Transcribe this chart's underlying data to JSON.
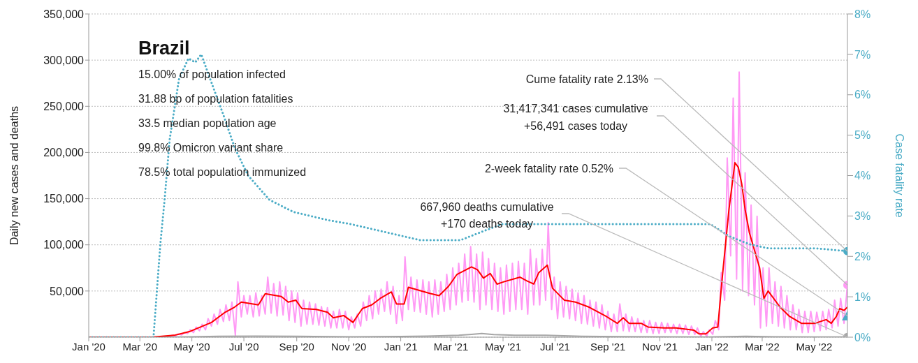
{
  "chart_data": {
    "type": "line",
    "title": "Brazil",
    "ylabel": "Daily new cases and deaths",
    "y2label": "Case fatality rate",
    "annotations": [
      "15.00% of population infected",
      "31.88 bp of population fatalities",
      "33.5 median population age",
      "99.8% Omicron variant share",
      "78.5% total population immunized",
      {
        "text": "Cume fatality rate 2.13%",
        "x": "2022-06-09",
        "y": 93000
      },
      {
        "text": "31,417,341 cases cumulative",
        "x": "2022-06-09",
        "y": 56491
      },
      "+56,491 cases today",
      {
        "text": "2-week fatality rate 0.52%",
        "x": "2022-06-09",
        "y": 23000
      },
      "667,960 deaths cumulative",
      "+170 deaths today"
    ],
    "xlim": [
      "2020-01-01",
      "2022-06-09"
    ],
    "xticks": [
      {
        "value": "2020-01-01",
        "label": "Jan '20"
      },
      {
        "value": "2020-03-01",
        "label": "Mar '20"
      },
      {
        "value": "2020-05-01",
        "label": "May '20"
      },
      {
        "value": "2020-07-01",
        "label": "Jul '20"
      },
      {
        "value": "2020-09-01",
        "label": "Sep '20"
      },
      {
        "value": "2020-11-01",
        "label": "Nov '20"
      },
      {
        "value": "2021-01-01",
        "label": "Jan '21"
      },
      {
        "value": "2021-03-01",
        "label": "Mar '21"
      },
      {
        "value": "2021-05-01",
        "label": "May '21"
      },
      {
        "value": "2021-07-01",
        "label": "Jul '21"
      },
      {
        "value": "2021-09-01",
        "label": "Sep '21"
      },
      {
        "value": "2021-11-01",
        "label": "Nov '21"
      },
      {
        "value": "2022-01-01",
        "label": "Jan '22"
      },
      {
        "value": "2022-03-01",
        "label": "Mar '22"
      },
      {
        "value": "2022-05-01",
        "label": "May '22"
      }
    ],
    "ylim": [
      0,
      350000
    ],
    "yticks": [
      {
        "value": 50000,
        "label": "50,000"
      },
      {
        "value": 100000,
        "label": "100,000"
      },
      {
        "value": 150000,
        "label": "150,000"
      },
      {
        "value": 200000,
        "label": "200,000"
      },
      {
        "value": 250000,
        "label": "250,000"
      },
      {
        "value": 300000,
        "label": "300,000"
      },
      {
        "value": 350000,
        "label": "350,000"
      }
    ],
    "y2lim": [
      0,
      8
    ],
    "y2ticks": [
      {
        "value": 0,
        "label": "0%"
      },
      {
        "value": 1,
        "label": "1%"
      },
      {
        "value": 2,
        "label": "2%"
      },
      {
        "value": 3,
        "label": "3%"
      },
      {
        "value": 4,
        "label": "4%"
      },
      {
        "value": 5,
        "label": "5%"
      },
      {
        "value": 6,
        "label": "6%"
      },
      {
        "value": 7,
        "label": "7%"
      },
      {
        "value": 8,
        "label": "8%"
      }
    ],
    "grid": "y",
    "series": [
      {
        "color": "#ff99f5",
        "line_style": "solid",
        "x": [
          "2020-04-05",
          "2020-04-08",
          "2020-04-12",
          "2020-04-15",
          "2020-04-19",
          "2020-04-22",
          "2020-04-26",
          "2020-04-29",
          "2020-05-03",
          "2020-05-06",
          "2020-05-10",
          "2020-05-13",
          "2020-05-17",
          "2020-05-20",
          "2020-05-24",
          "2020-05-27",
          "2020-05-31",
          "2020-06-03",
          "2020-06-07",
          "2020-06-10",
          "2020-06-14",
          "2020-06-17",
          "2020-06-21",
          "2020-06-24",
          "2020-06-28",
          "2020-07-01",
          "2020-07-05",
          "2020-07-08",
          "2020-07-12",
          "2020-07-15",
          "2020-07-19",
          "2020-07-22",
          "2020-07-26",
          "2020-07-29",
          "2020-08-02",
          "2020-08-05",
          "2020-08-09",
          "2020-08-12",
          "2020-08-16",
          "2020-08-19",
          "2020-08-23",
          "2020-08-26",
          "2020-08-30",
          "2020-09-02",
          "2020-09-06",
          "2020-09-09",
          "2020-09-13",
          "2020-09-16",
          "2020-09-20",
          "2020-09-23",
          "2020-09-27",
          "2020-09-30",
          "2020-10-04",
          "2020-10-07",
          "2020-10-11",
          "2020-10-14",
          "2020-10-18",
          "2020-10-21",
          "2020-10-25",
          "2020-10-28",
          "2020-11-01",
          "2020-11-04",
          "2020-11-08",
          "2020-11-11",
          "2020-11-15",
          "2020-11-18",
          "2020-11-22",
          "2020-11-25",
          "2020-11-29",
          "2020-12-02",
          "2020-12-06",
          "2020-12-09",
          "2020-12-13",
          "2020-12-16",
          "2020-12-20",
          "2020-12-23",
          "2020-12-27",
          "2020-12-30",
          "2021-01-03",
          "2021-01-06",
          "2021-01-10",
          "2021-01-13",
          "2021-01-17",
          "2021-01-20",
          "2021-01-24",
          "2021-01-27",
          "2021-01-31",
          "2021-02-03",
          "2021-02-07",
          "2021-02-10",
          "2021-02-14",
          "2021-02-17",
          "2021-02-21",
          "2021-02-24",
          "2021-02-28",
          "2021-03-03",
          "2021-03-07",
          "2021-03-10",
          "2021-03-14",
          "2021-03-17",
          "2021-03-21",
          "2021-03-24",
          "2021-03-28",
          "2021-03-31",
          "2021-04-04",
          "2021-04-07",
          "2021-04-11",
          "2021-04-14",
          "2021-04-18",
          "2021-04-21",
          "2021-04-25",
          "2021-04-28",
          "2021-05-02",
          "2021-05-05",
          "2021-05-09",
          "2021-05-12",
          "2021-05-16",
          "2021-05-19",
          "2021-05-23",
          "2021-05-26",
          "2021-05-30",
          "2021-06-02",
          "2021-06-06",
          "2021-06-09",
          "2021-06-13",
          "2021-06-16",
          "2021-06-20",
          "2021-06-23",
          "2021-06-27",
          "2021-06-30",
          "2021-07-04",
          "2021-07-07",
          "2021-07-11",
          "2021-07-14",
          "2021-07-18",
          "2021-07-21",
          "2021-07-25",
          "2021-07-28",
          "2021-08-01",
          "2021-08-04",
          "2021-08-08",
          "2021-08-11",
          "2021-08-15",
          "2021-08-18",
          "2021-08-22",
          "2021-08-25",
          "2021-08-29",
          "2021-09-01",
          "2021-09-05",
          "2021-09-08",
          "2021-09-12",
          "2021-09-15",
          "2021-09-19",
          "2021-09-22",
          "2021-09-26",
          "2021-09-29",
          "2021-10-03",
          "2021-10-06",
          "2021-10-10",
          "2021-10-13",
          "2021-10-17",
          "2021-10-20",
          "2021-10-24",
          "2021-10-27",
          "2021-10-31",
          "2021-11-03",
          "2021-11-07",
          "2021-11-10",
          "2021-11-14",
          "2021-11-17",
          "2021-11-21",
          "2021-11-24",
          "2021-11-28",
          "2021-12-01",
          "2021-12-05",
          "2021-12-08",
          "2021-12-12",
          "2021-12-15",
          "2021-12-19",
          "2021-12-22",
          "2021-12-26",
          "2021-12-29",
          "2022-01-02",
          "2022-01-05",
          "2022-01-09",
          "2022-01-12",
          "2022-01-16",
          "2022-01-19",
          "2022-01-23",
          "2022-01-26",
          "2022-01-30",
          "2022-02-02",
          "2022-02-06",
          "2022-02-09",
          "2022-02-13",
          "2022-02-16",
          "2022-02-20",
          "2022-02-23",
          "2022-02-27",
          "2022-03-02",
          "2022-03-06",
          "2022-03-09",
          "2022-03-13",
          "2022-03-16",
          "2022-03-20",
          "2022-03-23",
          "2022-03-27",
          "2022-03-30",
          "2022-04-03",
          "2022-04-06",
          "2022-04-10",
          "2022-04-13",
          "2022-04-17",
          "2022-04-20",
          "2022-04-24",
          "2022-04-27",
          "2022-05-01",
          "2022-05-04",
          "2022-05-08",
          "2022-05-11",
          "2022-05-15",
          "2022-05-18",
          "2022-05-22",
          "2022-05-25",
          "2022-05-29",
          "2022-06-01",
          "2022-06-05",
          "2022-06-09"
        ],
        "values": [
          1000,
          2000,
          1500,
          3500,
          2500,
          5000,
          4000,
          8000,
          5000,
          11000,
          7000,
          14000,
          8000,
          20000,
          12000,
          25000,
          14000,
          30000,
          17000,
          35000,
          18000,
          38000,
          2000,
          60000,
          22000,
          45000,
          25000,
          45000,
          22000,
          48000,
          23000,
          45000,
          25000,
          65000,
          26000,
          58000,
          23000,
          60000,
          24000,
          55000,
          18000,
          50000,
          16000,
          48000,
          12000,
          40000,
          14000,
          38000,
          14000,
          36000,
          13000,
          33000,
          12000,
          32000,
          10000,
          28000,
          10000,
          30000,
          10000,
          28000,
          8000,
          22000,
          10000,
          25000,
          12000,
          38000,
          18000,
          45000,
          20000,
          50000,
          25000,
          52000,
          28000,
          60000,
          25000,
          55000,
          15000,
          45000,
          18000,
          87000,
          30000,
          65000,
          28000,
          62000,
          27000,
          62000,
          25000,
          60000,
          22000,
          62000,
          25000,
          60000,
          28000,
          68000,
          30000,
          75000,
          35000,
          80000,
          38000,
          90000,
          40000,
          98000,
          38000,
          90000,
          30000,
          92000,
          35000,
          85000,
          30000,
          80000,
          28000,
          75000,
          25000,
          78000,
          28000,
          80000,
          30000,
          82000,
          30000,
          80000,
          25000,
          95000,
          35000,
          85000,
          35000,
          95000,
          40000,
          124000,
          30000,
          65000,
          20000,
          60000,
          22000,
          55000,
          20000,
          52000,
          18000,
          48000,
          15000,
          45000,
          14000,
          40000,
          12000,
          38000,
          10000,
          35000,
          8000,
          28000,
          6000,
          25000,
          6000,
          36000,
          7000,
          25000,
          6000,
          22000,
          6000,
          20000,
          5000,
          18000,
          5000,
          18000,
          4000,
          16000,
          4000,
          16000,
          5000,
          15000,
          5000,
          14000,
          4000,
          14000,
          4000,
          13000,
          3000,
          12000,
          3000,
          10000,
          1000,
          6000,
          1000,
          8000,
          3000,
          18000,
          8000,
          70000,
          40000,
          194000,
          88000,
          259000,
          63000,
          287000,
          50000,
          178000,
          45000,
          143000,
          35000,
          131000,
          10000,
          75000,
          12000,
          75000,
          15000,
          60000,
          12000,
          55000,
          10000,
          45000,
          8000,
          35000,
          8000,
          30000,
          5000,
          28000,
          5000,
          28000,
          6000,
          27000,
          7000,
          28000,
          8000,
          30000,
          10000,
          40000,
          12000,
          42000,
          15000,
          56491
        ]
      },
      {
        "color": "#a6a6a6",
        "line_style": "solid",
        "x": [
          "2020-01-01",
          "2020-03-20",
          "2020-05-01",
          "2020-06-01",
          "2020-07-15",
          "2020-09-01",
          "2020-11-01",
          "2021-01-01",
          "2021-02-01",
          "2021-03-10",
          "2021-03-25",
          "2021-04-06",
          "2021-04-20",
          "2021-05-15",
          "2021-06-20",
          "2021-08-01",
          "2021-09-15",
          "2021-11-01",
          "2021-12-25",
          "2022-02-10",
          "2022-03-15",
          "2022-05-01",
          "2022-06-09"
        ],
        "values": [
          0,
          0,
          400,
          1000,
          1100,
          900,
          400,
          700,
          1100,
          2000,
          3000,
          4000,
          2800,
          2000,
          2000,
          1000,
          600,
          300,
          100,
          900,
          400,
          100,
          170
        ]
      },
      {
        "color": "#ff0000",
        "line_style": "solid",
        "x": [
          "2020-01-01",
          "2020-03-15",
          "2020-04-10",
          "2020-04-28",
          "2020-05-24",
          "2020-06-09",
          "2020-06-20",
          "2020-06-28",
          "2020-07-18",
          "2020-07-26",
          "2020-08-14",
          "2020-08-22",
          "2020-08-31",
          "2020-09-07",
          "2020-09-24",
          "2020-10-07",
          "2020-10-14",
          "2020-10-26",
          "2020-11-06",
          "2020-11-17",
          "2020-11-28",
          "2020-12-08",
          "2020-12-21",
          "2020-12-27",
          "2021-01-05",
          "2021-01-10",
          "2021-02-04",
          "2021-02-15",
          "2021-02-26",
          "2021-03-08",
          "2021-03-25",
          "2021-04-01",
          "2021-04-08",
          "2021-04-16",
          "2021-04-24",
          "2021-05-02",
          "2021-05-21",
          "2021-05-29",
          "2021-06-06",
          "2021-06-12",
          "2021-06-22",
          "2021-06-28",
          "2021-07-12",
          "2021-07-25",
          "2021-08-10",
          "2021-08-30",
          "2021-09-12",
          "2021-09-19",
          "2021-09-26",
          "2021-10-10",
          "2021-10-18",
          "2021-11-06",
          "2021-11-20",
          "2021-12-11",
          "2021-12-17",
          "2021-12-25",
          "2022-01-02",
          "2022-01-08",
          "2022-01-13",
          "2022-01-21",
          "2022-01-28",
          "2022-02-01",
          "2022-02-05",
          "2022-02-09",
          "2022-02-14",
          "2022-02-26",
          "2022-03-03",
          "2022-03-08",
          "2022-03-22",
          "2022-04-02",
          "2022-04-16",
          "2022-05-02",
          "2022-05-15",
          "2022-05-21",
          "2022-05-27",
          "2022-05-31",
          "2022-06-05",
          "2022-06-09"
        ],
        "values": [
          0,
          0,
          2000,
          6000,
          16000,
          27000,
          32500,
          38000,
          35000,
          47000,
          44000,
          38000,
          40000,
          31000,
          30000,
          27000,
          21000,
          23500,
          16000,
          31000,
          35000,
          42000,
          49000,
          36000,
          36000,
          54000,
          47500,
          45000,
          55000,
          68000,
          76000,
          73000,
          64000,
          69000,
          57500,
          60000,
          65000,
          61000,
          57500,
          70000,
          78000,
          53000,
          40000,
          38000,
          32500,
          22500,
          15000,
          21000,
          15000,
          15000,
          11000,
          10000,
          10000,
          7500,
          3500,
          3500,
          10000,
          11000,
          63000,
          138000,
          189000,
          184000,
          166000,
          138000,
          113000,
          75000,
          42000,
          50000,
          32500,
          22500,
          15000,
          15000,
          19000,
          15000,
          22500,
          31000,
          29000,
          32500
        ]
      },
      {
        "color": "#4bacc6",
        "axis": "y2",
        "line_style": "dotted",
        "x": [
          "2020-01-01",
          "2020-03-17",
          "2020-03-25",
          "2020-03-30",
          "2020-04-05",
          "2020-04-16",
          "2020-04-27",
          "2020-05-05",
          "2020-05-12",
          "2020-05-24",
          "2020-06-07",
          "2020-06-20",
          "2020-07-06",
          "2020-07-31",
          "2020-08-28",
          "2020-10-07",
          "2020-11-03",
          "2020-12-14",
          "2021-01-24",
          "2021-03-12",
          "2021-04-05",
          "2021-04-30",
          "2021-06-09",
          "2021-12-30",
          "2022-01-21",
          "2022-02-14",
          "2022-03-08",
          "2022-05-02",
          "2022-06-09"
        ],
        "values": [
          0,
          0,
          2.3,
          3.4,
          4.9,
          6.4,
          6.9,
          6.8,
          7.0,
          6.3,
          5.5,
          4.7,
          4.0,
          3.4,
          3.1,
          2.9,
          2.8,
          2.6,
          2.4,
          2.4,
          2.6,
          2.8,
          2.8,
          2.8,
          2.5,
          2.3,
          2.2,
          2.2,
          2.13
        ]
      },
      {
        "type": "scatter",
        "color": "#4bacc6",
        "axis": "y2",
        "marker": "circle",
        "x": [
          "2022-06-09"
        ],
        "values": [
          2.13
        ]
      },
      {
        "type": "scatter",
        "color": "#ff99f5",
        "marker": "circle",
        "x": [
          "2022-06-09"
        ],
        "values": [
          56491
        ]
      },
      {
        "type": "scatter",
        "color": "#4bacc6",
        "axis": "y2",
        "marker": "triangle",
        "x": [
          "2022-06-09"
        ],
        "values": [
          0.52
        ]
      },
      {
        "type": "scatter",
        "color": "#a6a6a6",
        "marker": "circle",
        "x": [
          "2022-06-09"
        ],
        "values": [
          170
        ]
      }
    ]
  }
}
